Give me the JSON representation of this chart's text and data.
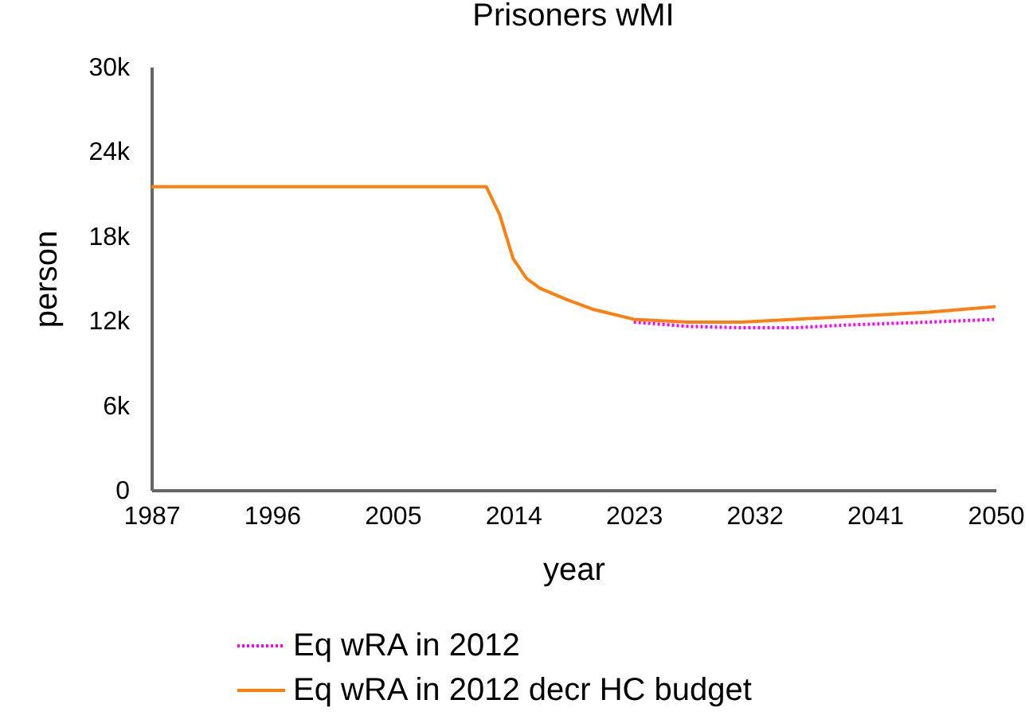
{
  "chart_data": {
    "type": "line",
    "title": "Prisoners wMI",
    "xlabel": "year",
    "ylabel": "person",
    "x": [
      1987,
      2012,
      2013,
      2014,
      2015,
      2016,
      2018,
      2020,
      2023,
      2027,
      2031,
      2035,
      2039,
      2045,
      2050
    ],
    "series": [
      {
        "name": "Eq wRA in 2012",
        "color": "#ff00ff",
        "line_style": "dotted",
        "values": [
          null,
          null,
          null,
          null,
          null,
          null,
          null,
          null,
          11900,
          11600,
          11500,
          11500,
          11700,
          11900,
          12100
        ]
      },
      {
        "name": "Eq wRA in 2012 decr HC budget",
        "color": "#ff7f0e",
        "line_style": "solid",
        "values": [
          21500,
          21500,
          19500,
          16400,
          15000,
          14300,
          13500,
          12800,
          12100,
          11900,
          11900,
          12100,
          12300,
          12600,
          13000
        ]
      }
    ],
    "xlim": [
      1987,
      2050
    ],
    "xticks": [
      1987,
      1996,
      2005,
      2014,
      2023,
      2032,
      2041,
      2050
    ],
    "ylim": [
      0,
      30000
    ],
    "yticks": [
      {
        "value": 0,
        "label": "0"
      },
      {
        "value": 6000,
        "label": "6k"
      },
      {
        "value": 12000,
        "label": "12k"
      },
      {
        "value": 18000,
        "label": "18k"
      },
      {
        "value": 24000,
        "label": "24k"
      },
      {
        "value": 30000,
        "label": "30k"
      }
    ],
    "grid": false,
    "legend": "bottom",
    "marker": "none"
  }
}
